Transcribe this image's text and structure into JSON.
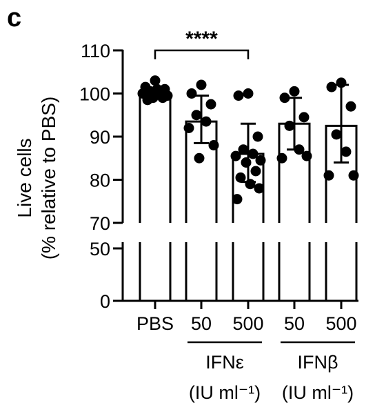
{
  "panel_label": "c",
  "chart_data": {
    "type": "bar",
    "ylabel_line1": "Live cells",
    "ylabel_line2": "(% relative to PBS)",
    "y_axis_break": [
      50,
      70
    ],
    "ylim": [
      0,
      110
    ],
    "yticks_upper": [
      70,
      80,
      90,
      100,
      110
    ],
    "yticks_lower": [
      0,
      50
    ],
    "categories": [
      "PBS",
      "50",
      "500",
      "50",
      "500"
    ],
    "groups": [
      {
        "label": "IFNε",
        "unit": "(IU ml⁻¹)",
        "categories": [
          1,
          2
        ]
      },
      {
        "label": "IFNβ",
        "unit": "(IU ml⁻¹)",
        "categories": [
          3,
          4
        ]
      }
    ],
    "bars": [
      {
        "category": "PBS",
        "mean": 100,
        "sd_low": 99,
        "sd_high": 101,
        "points": [
          103,
          101.5,
          101,
          100.5,
          100,
          100,
          99.5,
          99,
          99,
          98.5,
          101
        ]
      },
      {
        "category": "IFNε 50",
        "mean": 93.5,
        "sd_low": 88.5,
        "sd_high": 99.5,
        "points": [
          102,
          100,
          97.5,
          95,
          93.5,
          92,
          88,
          85
        ]
      },
      {
        "category": "IFNε 500",
        "mean": 86,
        "sd_low": 79.5,
        "sd_high": 93,
        "points": [
          100,
          99.5,
          90,
          87,
          86,
          85.5,
          84.5,
          84,
          82,
          80.5,
          79,
          78,
          75.5
        ]
      },
      {
        "category": "IFNβ 50",
        "mean": 93,
        "sd_low": 87,
        "sd_high": 99,
        "points": [
          100.5,
          99,
          94.5,
          92.5,
          87,
          85,
          85.5
        ]
      },
      {
        "category": "IFNβ 500",
        "mean": 92.5,
        "sd_low": 84,
        "sd_high": 102,
        "points": [
          102.5,
          101.5,
          97,
          90.5,
          86.5,
          81,
          81
        ]
      }
    ],
    "annotation": {
      "from": 0,
      "to": 2,
      "text": "****"
    }
  }
}
